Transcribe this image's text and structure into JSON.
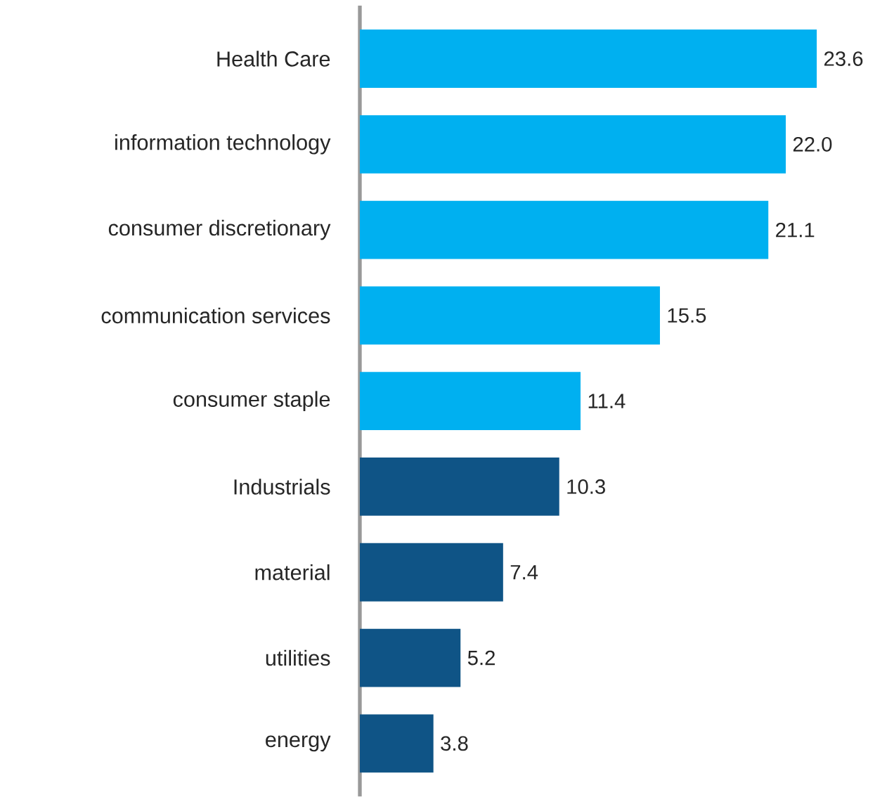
{
  "chart_data": {
    "type": "bar",
    "orientation": "horizontal",
    "tick_labels": "y",
    "categories": [
      "Health Care",
      "information technology",
      "consumer discretionary",
      "communication services",
      "consumer staple",
      "Industrials",
      "material",
      "utilities",
      "energy"
    ],
    "values": [
      23.6,
      22.0,
      21.1,
      15.5,
      11.4,
      10.3,
      7.4,
      5.2,
      3.8
    ],
    "value_labels": [
      "23.6",
      "22.0",
      "21.1",
      "15.5",
      "11.4",
      "10.3",
      "7.4",
      "5.2",
      "3.8"
    ],
    "colors": [
      "#00b0f0",
      "#00b0f0",
      "#00b0f0",
      "#00b0f0",
      "#00b0f0",
      "#0f5486",
      "#0f5486",
      "#0f5486",
      "#0f5486"
    ]
  }
}
